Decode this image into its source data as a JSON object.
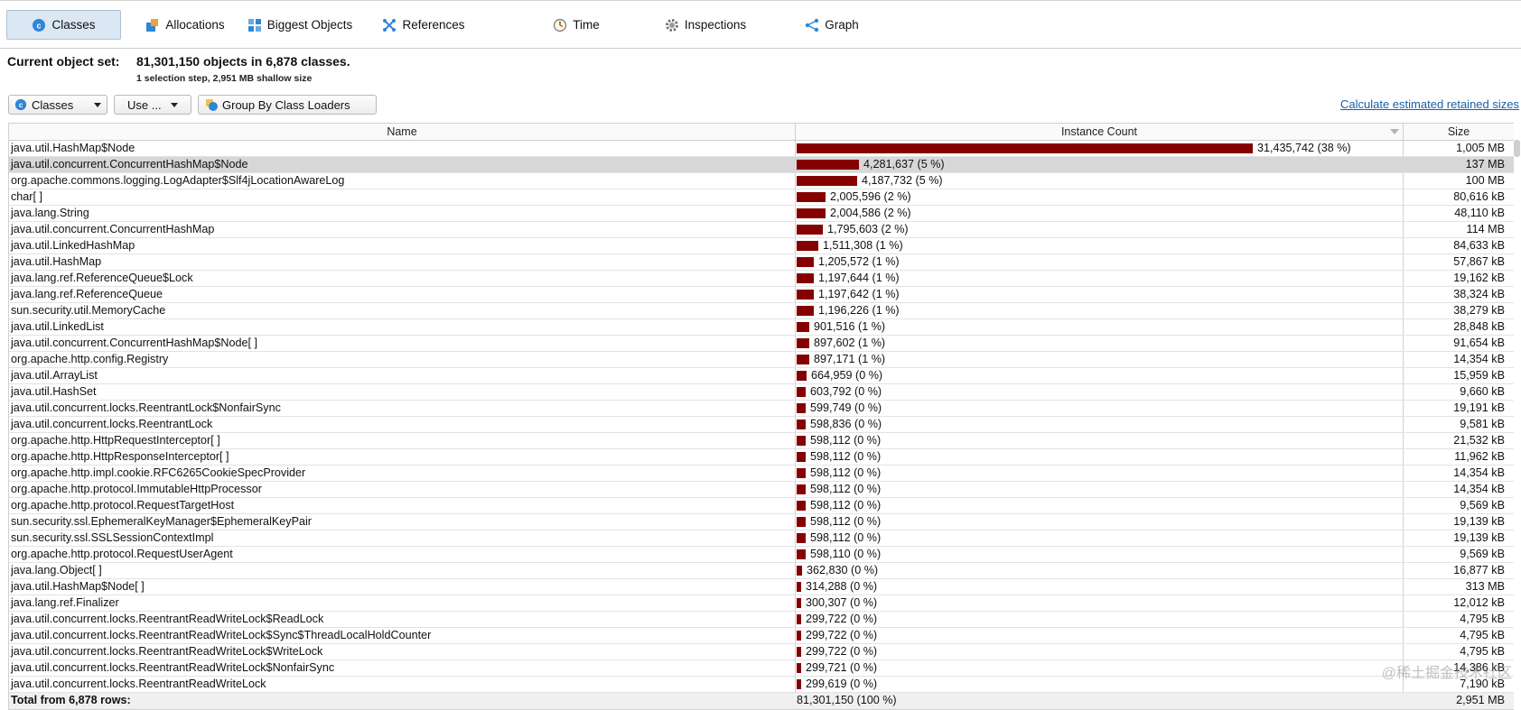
{
  "tabs": [
    {
      "label": "Classes",
      "icon": "classes-icon",
      "active": true
    },
    {
      "label": "Allocations",
      "icon": "allocations-icon",
      "active": false
    },
    {
      "label": "Biggest Objects",
      "icon": "biggest-objects-icon",
      "active": false
    },
    {
      "label": "References",
      "icon": "references-icon",
      "active": false
    },
    {
      "label": "Time",
      "icon": "clock-icon",
      "active": false
    },
    {
      "label": "Inspections",
      "icon": "gear-icon",
      "active": false
    },
    {
      "label": "Graph",
      "icon": "graph-icon",
      "active": false
    }
  ],
  "object_set": {
    "label": "Current object set:",
    "value": "81,301,150 objects in 6,878 classes.",
    "sub": "1 selection step, 2,951 MB shallow size"
  },
  "toolbar": {
    "view_select": "Classes",
    "use_button": "Use ...",
    "group_button": "Group By Class Loaders",
    "calc_link": "Calculate estimated retained sizes"
  },
  "table": {
    "columns": {
      "name": "Name",
      "count": "Instance Count",
      "size": "Size"
    },
    "rows": [
      {
        "name": "java.util.HashMap$Node",
        "count": "31,435,742 (38 %)",
        "size": "1,005 MB",
        "fraction": 1.0
      },
      {
        "name": "java.util.concurrent.ConcurrentHashMap$Node",
        "count": "4,281,637 (5 %)",
        "size": "137 MB",
        "fraction": 0.1362,
        "selected": true
      },
      {
        "name": "org.apache.commons.logging.LogAdapter$Slf4jLocationAwareLog",
        "count": "4,187,732 (5 %)",
        "size": "100 MB",
        "fraction": 0.1332
      },
      {
        "name": "char[ ]",
        "count": "2,005,596 (2 %)",
        "size": "80,616 kB",
        "fraction": 0.0638
      },
      {
        "name": "java.lang.String",
        "count": "2,004,586 (2 %)",
        "size": "48,110 kB",
        "fraction": 0.0638
      },
      {
        "name": "java.util.concurrent.ConcurrentHashMap",
        "count": "1,795,603 (2 %)",
        "size": "114 MB",
        "fraction": 0.0571
      },
      {
        "name": "java.util.LinkedHashMap",
        "count": "1,511,308 (1 %)",
        "size": "84,633 kB",
        "fraction": 0.0481
      },
      {
        "name": "java.util.HashMap",
        "count": "1,205,572 (1 %)",
        "size": "57,867 kB",
        "fraction": 0.0384
      },
      {
        "name": "java.lang.ref.ReferenceQueue$Lock",
        "count": "1,197,644 (1 %)",
        "size": "19,162 kB",
        "fraction": 0.0381
      },
      {
        "name": "java.lang.ref.ReferenceQueue",
        "count": "1,197,642 (1 %)",
        "size": "38,324 kB",
        "fraction": 0.0381
      },
      {
        "name": "sun.security.util.MemoryCache",
        "count": "1,196,226 (1 %)",
        "size": "38,279 kB",
        "fraction": 0.0381
      },
      {
        "name": "java.util.LinkedList",
        "count": "901,516 (1 %)",
        "size": "28,848 kB",
        "fraction": 0.0287
      },
      {
        "name": "java.util.concurrent.ConcurrentHashMap$Node[ ]",
        "count": "897,602 (1 %)",
        "size": "91,654 kB",
        "fraction": 0.0286
      },
      {
        "name": "org.apache.http.config.Registry",
        "count": "897,171 (1 %)",
        "size": "14,354 kB",
        "fraction": 0.0285
      },
      {
        "name": "java.util.ArrayList",
        "count": "664,959 (0 %)",
        "size": "15,959 kB",
        "fraction": 0.0212
      },
      {
        "name": "java.util.HashSet",
        "count": "603,792 (0 %)",
        "size": "9,660 kB",
        "fraction": 0.0192
      },
      {
        "name": "java.util.concurrent.locks.ReentrantLock$NonfairSync",
        "count": "599,749 (0 %)",
        "size": "19,191 kB",
        "fraction": 0.0191
      },
      {
        "name": "java.util.concurrent.locks.ReentrantLock",
        "count": "598,836 (0 %)",
        "size": "9,581 kB",
        "fraction": 0.019
      },
      {
        "name": "org.apache.http.HttpRequestInterceptor[ ]",
        "count": "598,112 (0 %)",
        "size": "21,532 kB",
        "fraction": 0.019
      },
      {
        "name": "org.apache.http.HttpResponseInterceptor[ ]",
        "count": "598,112 (0 %)",
        "size": "11,962 kB",
        "fraction": 0.019
      },
      {
        "name": "org.apache.http.impl.cookie.RFC6265CookieSpecProvider",
        "count": "598,112 (0 %)",
        "size": "14,354 kB",
        "fraction": 0.019
      },
      {
        "name": "org.apache.http.protocol.ImmutableHttpProcessor",
        "count": "598,112 (0 %)",
        "size": "14,354 kB",
        "fraction": 0.019
      },
      {
        "name": "org.apache.http.protocol.RequestTargetHost",
        "count": "598,112 (0 %)",
        "size": "9,569 kB",
        "fraction": 0.019
      },
      {
        "name": "sun.security.ssl.EphemeralKeyManager$EphemeralKeyPair",
        "count": "598,112 (0 %)",
        "size": "19,139 kB",
        "fraction": 0.019
      },
      {
        "name": "sun.security.ssl.SSLSessionContextImpl",
        "count": "598,112 (0 %)",
        "size": "19,139 kB",
        "fraction": 0.019
      },
      {
        "name": "org.apache.http.protocol.RequestUserAgent",
        "count": "598,110 (0 %)",
        "size": "9,569 kB",
        "fraction": 0.019
      },
      {
        "name": "java.lang.Object[ ]",
        "count": "362,830 (0 %)",
        "size": "16,877 kB",
        "fraction": 0.0115
      },
      {
        "name": "java.util.HashMap$Node[ ]",
        "count": "314,288 (0 %)",
        "size": "313 MB",
        "fraction": 0.01
      },
      {
        "name": "java.lang.ref.Finalizer",
        "count": "300,307 (0 %)",
        "size": "12,012 kB",
        "fraction": 0.0096
      },
      {
        "name": "java.util.concurrent.locks.ReentrantReadWriteLock$ReadLock",
        "count": "299,722 (0 %)",
        "size": "4,795 kB",
        "fraction": 0.0095
      },
      {
        "name": "java.util.concurrent.locks.ReentrantReadWriteLock$Sync$ThreadLocalHoldCounter",
        "count": "299,722 (0 %)",
        "size": "4,795 kB",
        "fraction": 0.0095
      },
      {
        "name": "java.util.concurrent.locks.ReentrantReadWriteLock$WriteLock",
        "count": "299,722 (0 %)",
        "size": "4,795 kB",
        "fraction": 0.0095
      },
      {
        "name": "java.util.concurrent.locks.ReentrantReadWriteLock$NonfairSync",
        "count": "299,721 (0 %)",
        "size": "14,386 kB",
        "fraction": 0.0095
      },
      {
        "name": "java.util.concurrent.locks.ReentrantReadWriteLock",
        "count": "299,619 (0 %)",
        "size": "7,190 kB",
        "fraction": 0.0095
      }
    ],
    "total": {
      "name": "Total from 6,878 rows:",
      "count": "81,301,150 (100 %)",
      "size": "2,951 MB"
    }
  },
  "colors": {
    "bar": "#850000",
    "selection": "#d7d7d7",
    "link": "#1a5fa8"
  },
  "watermark": "@稀土掘金技术社区"
}
